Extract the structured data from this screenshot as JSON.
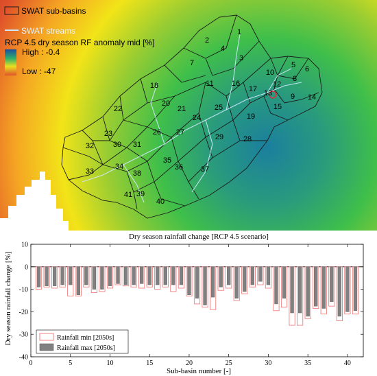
{
  "map": {
    "legend": {
      "subbasins": "SWAT sub-basins",
      "streams": "SWAT streams",
      "title": "RCP 4.5 dry season RF anomaly mid [%]",
      "high": "High : -0.4",
      "low": "Low : -47"
    },
    "basin_labels": [
      "1",
      "2",
      "3",
      "4",
      "5",
      "6",
      "7",
      "8",
      "9",
      "10",
      "11",
      "12",
      "13",
      "14",
      "15",
      "16",
      "17",
      "18",
      "19",
      "20",
      "21",
      "22",
      "23",
      "24",
      "25",
      "26",
      "27",
      "28",
      "29",
      "30",
      "31",
      "32",
      "33",
      "34",
      "35",
      "36",
      "37",
      "38",
      "39",
      "40",
      "41"
    ]
  },
  "chart_data": {
    "type": "bar",
    "title": "Dry season rainfall change [RCP 4.5 scenario]",
    "xlabel": "Sub-basin number [-]",
    "ylabel": "Dry season rainfall change [%]",
    "xlim": [
      0,
      42
    ],
    "ylim": [
      -40,
      10
    ],
    "xticks": [
      0,
      5,
      10,
      15,
      20,
      25,
      30,
      35,
      40
    ],
    "yticks": [
      10,
      0,
      -10,
      -20,
      -30,
      -40
    ],
    "legend_position": "bottom-left",
    "categories": [
      1,
      2,
      3,
      4,
      5,
      6,
      7,
      8,
      9,
      10,
      11,
      12,
      13,
      14,
      15,
      16,
      17,
      18,
      19,
      20,
      21,
      22,
      23,
      24,
      25,
      26,
      27,
      28,
      29,
      30,
      31,
      32,
      33,
      34,
      35,
      36,
      37,
      38,
      39,
      40,
      41
    ],
    "series": [
      {
        "name": "Rainfall min [2050s]",
        "style": "outline",
        "color": "#f08080",
        "values": [
          -10,
          -9,
          -9.5,
          -9,
          -13,
          -13,
          -9,
          -11.5,
          -11,
          -9.5,
          -8,
          -8.5,
          -9,
          -9.5,
          -9,
          -10,
          -9,
          -11,
          -9.5,
          -13,
          -16.5,
          -18,
          -19,
          -10.5,
          -9.5,
          -15,
          -12,
          -9,
          -8,
          -9.5,
          -19.5,
          -18,
          -26,
          -26,
          -23,
          -18.5,
          -21,
          -17.5,
          -24,
          -21,
          -21
        ]
      },
      {
        "name": "Rainfall max [2050s]",
        "style": "filled",
        "color": "#808080",
        "values": [
          -9,
          -8.5,
          -8.5,
          -8,
          -8,
          -12.5,
          -8,
          -10,
          -10,
          -8.5,
          -7.5,
          -8,
          -8,
          -7.5,
          -8,
          -8,
          -8,
          -8,
          -8,
          -12.5,
          -14,
          -17,
          -13.5,
          -9,
          -8,
          -14,
          -11,
          -8,
          -6.5,
          -8,
          -16.5,
          -14,
          -20.5,
          -20.5,
          -22,
          -17.5,
          -18.5,
          -15.5,
          -22,
          -20,
          -19.5
        ]
      }
    ]
  }
}
